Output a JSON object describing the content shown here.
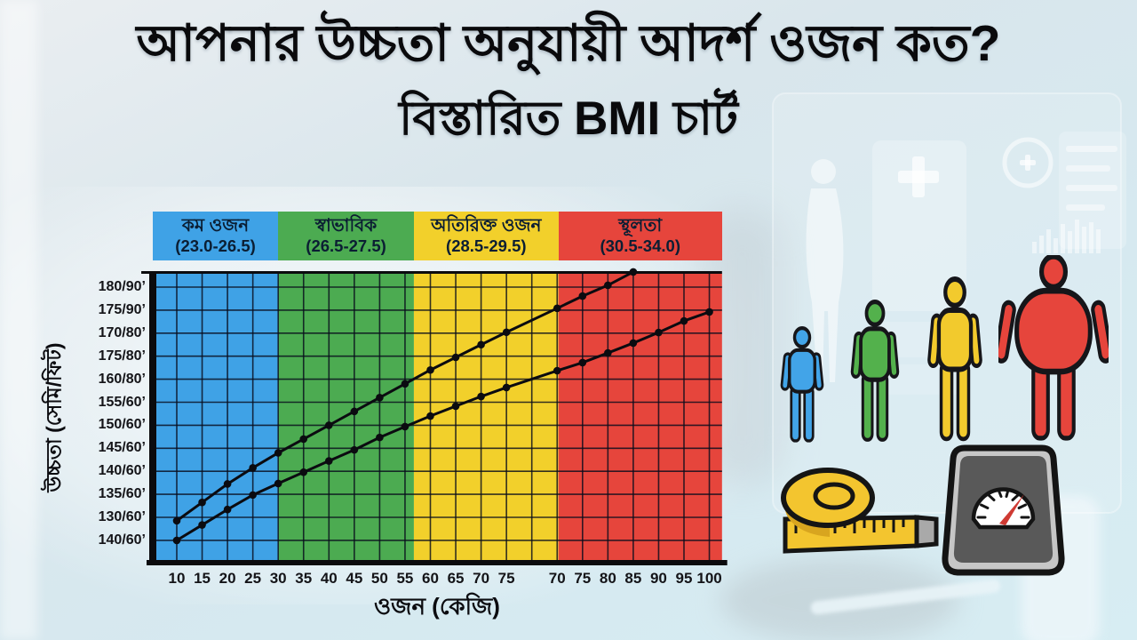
{
  "title": {
    "line1": "আপনার উচ্চতা অনুযায়ী আদর্শ ওজন কত?",
    "line2": "বিস্তারিত BMI চার্ট"
  },
  "chart_data": {
    "type": "line",
    "xlabel": "ওজন (কেজি)",
    "ylabel": "উচ্চতা (সেমি/ফিট)",
    "x_axis": {
      "group1": [
        "10",
        "15",
        "20",
        "25",
        "30",
        "35",
        "40",
        "45",
        "50",
        "55",
        "60",
        "65",
        "70",
        "75"
      ],
      "group2": [
        "70",
        "75",
        "80",
        "85",
        "90",
        "95",
        "100"
      ],
      "unlabeled_gap_columns": 1
    },
    "y_axis_labels": [
      "180/90’",
      "175/90’",
      "170/80’",
      "175/80’",
      "160/80’",
      "155/60’",
      "150/60’",
      "145/60’",
      "140/60’",
      "135/60’",
      "130/60’",
      "140/60’"
    ],
    "zones": [
      {
        "name": "কম ওজন",
        "range": "(23.0-26.5)",
        "color": "#3fa2e6",
        "col_start": -0.95,
        "col_end": 4.0
      },
      {
        "name": "স্বাভাবিক",
        "range": "(26.5-27.5)",
        "color": "#4cab51",
        "col_start": 4.0,
        "col_end": 9.35
      },
      {
        "name": "অতিরিক্ত ওজন",
        "range": "(28.5-29.5)",
        "color": "#f2d02b",
        "col_start": 9.35,
        "col_end": 15.05
      },
      {
        "name": "স্থূলতা",
        "range": "(30.5-34.0)",
        "color": "#e6453c",
        "col_start": 15.05,
        "col_end": 21.5
      }
    ],
    "series": [
      {
        "name": "upper-weight-line",
        "color": "#0b0b10",
        "points": [
          [
            0,
            10.15
          ],
          [
            1,
            9.35
          ],
          [
            2,
            8.55
          ],
          [
            3,
            7.85
          ],
          [
            4,
            7.2
          ],
          [
            5,
            6.6
          ],
          [
            6,
            6.0
          ],
          [
            7,
            5.4
          ],
          [
            8,
            4.8
          ],
          [
            9,
            4.2
          ],
          [
            10,
            3.6
          ],
          [
            11,
            3.05
          ],
          [
            12,
            2.5
          ],
          [
            13,
            1.96
          ],
          [
            15,
            0.92
          ],
          [
            16,
            0.39
          ],
          [
            17,
            -0.08
          ],
          [
            18,
            -0.66
          ]
        ]
      },
      {
        "name": "lower-weight-line",
        "color": "#0b0b10",
        "points": [
          [
            0,
            11.0
          ],
          [
            1,
            10.33
          ],
          [
            2,
            9.66
          ],
          [
            3,
            9.03
          ],
          [
            4,
            8.53
          ],
          [
            5,
            8.04
          ],
          [
            6,
            7.55
          ],
          [
            7,
            7.07
          ],
          [
            8,
            6.53
          ],
          [
            9,
            6.06
          ],
          [
            10,
            5.6
          ],
          [
            11,
            5.17
          ],
          [
            12,
            4.75
          ],
          [
            13,
            4.36
          ],
          [
            15,
            3.63
          ],
          [
            16,
            3.28
          ],
          [
            17,
            2.86
          ],
          [
            18,
            2.43
          ],
          [
            19,
            1.97
          ],
          [
            20,
            1.47
          ],
          [
            21,
            1.08
          ]
        ]
      }
    ],
    "grid": {
      "rows_labeled": 12,
      "columns": 22,
      "grid_on": true
    }
  },
  "figures": [
    {
      "name": "underweight-person-icon",
      "color": "#42a4e8",
      "wide": false
    },
    {
      "name": "normal-person-icon",
      "color": "#53b14c",
      "wide": false
    },
    {
      "name": "overweight-person-icon",
      "color": "#f2ca2d",
      "wide": false
    },
    {
      "name": "obese-person-icon",
      "color": "#e6453c",
      "wide": true
    }
  ],
  "icons": {
    "tape": {
      "name": "measuring-tape-icon",
      "color": "#f3c52f",
      "end_color": "#a9a9a9"
    },
    "scale": {
      "name": "weight-scale-icon",
      "body_color": "#595959",
      "rim_color": "#c6c6c6",
      "needle_color": "#cf3a33"
    }
  }
}
